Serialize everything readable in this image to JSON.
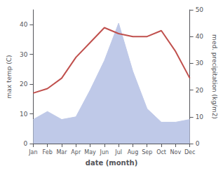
{
  "chart_data": {
    "type": "line",
    "xlabel": "date (month)",
    "ylabel": "max temp (C)",
    "y2label": "med. precipitation (kg/m2)",
    "categories": [
      "Jan",
      "Feb",
      "Mar",
      "Apr",
      "May",
      "Jun",
      "Jul",
      "Aug",
      "Sep",
      "Oct",
      "Nov",
      "Dec"
    ],
    "series": [
      {
        "type": "line",
        "color": "#c0504d",
        "values": [
          17,
          18.5,
          22,
          29,
          34,
          39,
          37,
          36,
          36,
          38,
          31,
          22
        ]
      },
      {
        "type": "area",
        "color": "#bfc9e8",
        "axis": "y2",
        "values": [
          9,
          12,
          9,
          10,
          20,
          31,
          45,
          27,
          13,
          8,
          8,
          9
        ]
      }
    ],
    "ylim": [
      0,
      45
    ],
    "yticks": [
      0,
      10,
      20,
      30,
      40
    ],
    "y2lim": [
      0,
      50
    ],
    "y2ticks": [
      0,
      10,
      20,
      30,
      40,
      50
    ],
    "grid": false
  }
}
